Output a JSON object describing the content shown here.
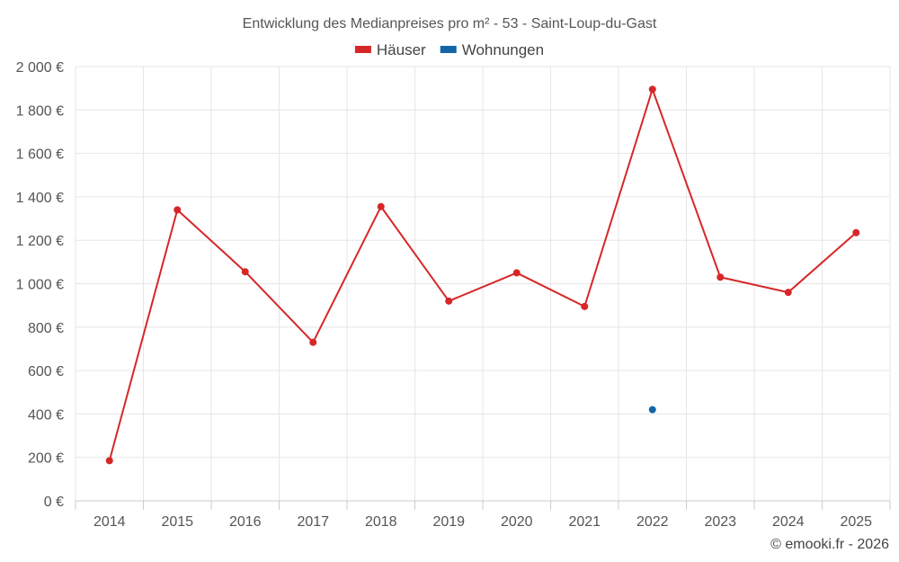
{
  "chart_data": {
    "type": "line",
    "title": "Entwicklung des Medianpreises pro m² - 53 - Saint-Loup-du-Gast",
    "xlabel": "",
    "ylabel": "",
    "categories": [
      "2014",
      "2015",
      "2016",
      "2017",
      "2018",
      "2019",
      "2020",
      "2021",
      "2022",
      "2023",
      "2024",
      "2025"
    ],
    "ylim": [
      0,
      2000
    ],
    "y_ticks": [
      0,
      200,
      400,
      600,
      800,
      1000,
      1200,
      1400,
      1600,
      1800,
      2000
    ],
    "y_tick_labels": [
      "0 €",
      "200 €",
      "400 €",
      "600 €",
      "800 €",
      "1 000 €",
      "1 200 €",
      "1 400 €",
      "1 600 €",
      "1 800 €",
      "2 000 €"
    ],
    "grid": true,
    "legend_position": "top-center",
    "series": [
      {
        "name": "Häuser",
        "color": "#d62728",
        "values": [
          185,
          1340,
          1055,
          730,
          1355,
          920,
          1050,
          895,
          1895,
          1030,
          960,
          1235
        ]
      },
      {
        "name": "Wohnungen",
        "color": "#1565a6",
        "values": [
          null,
          null,
          null,
          null,
          null,
          null,
          null,
          null,
          420,
          null,
          null,
          null
        ]
      }
    ]
  },
  "credit": "© emooki.fr - 2026"
}
